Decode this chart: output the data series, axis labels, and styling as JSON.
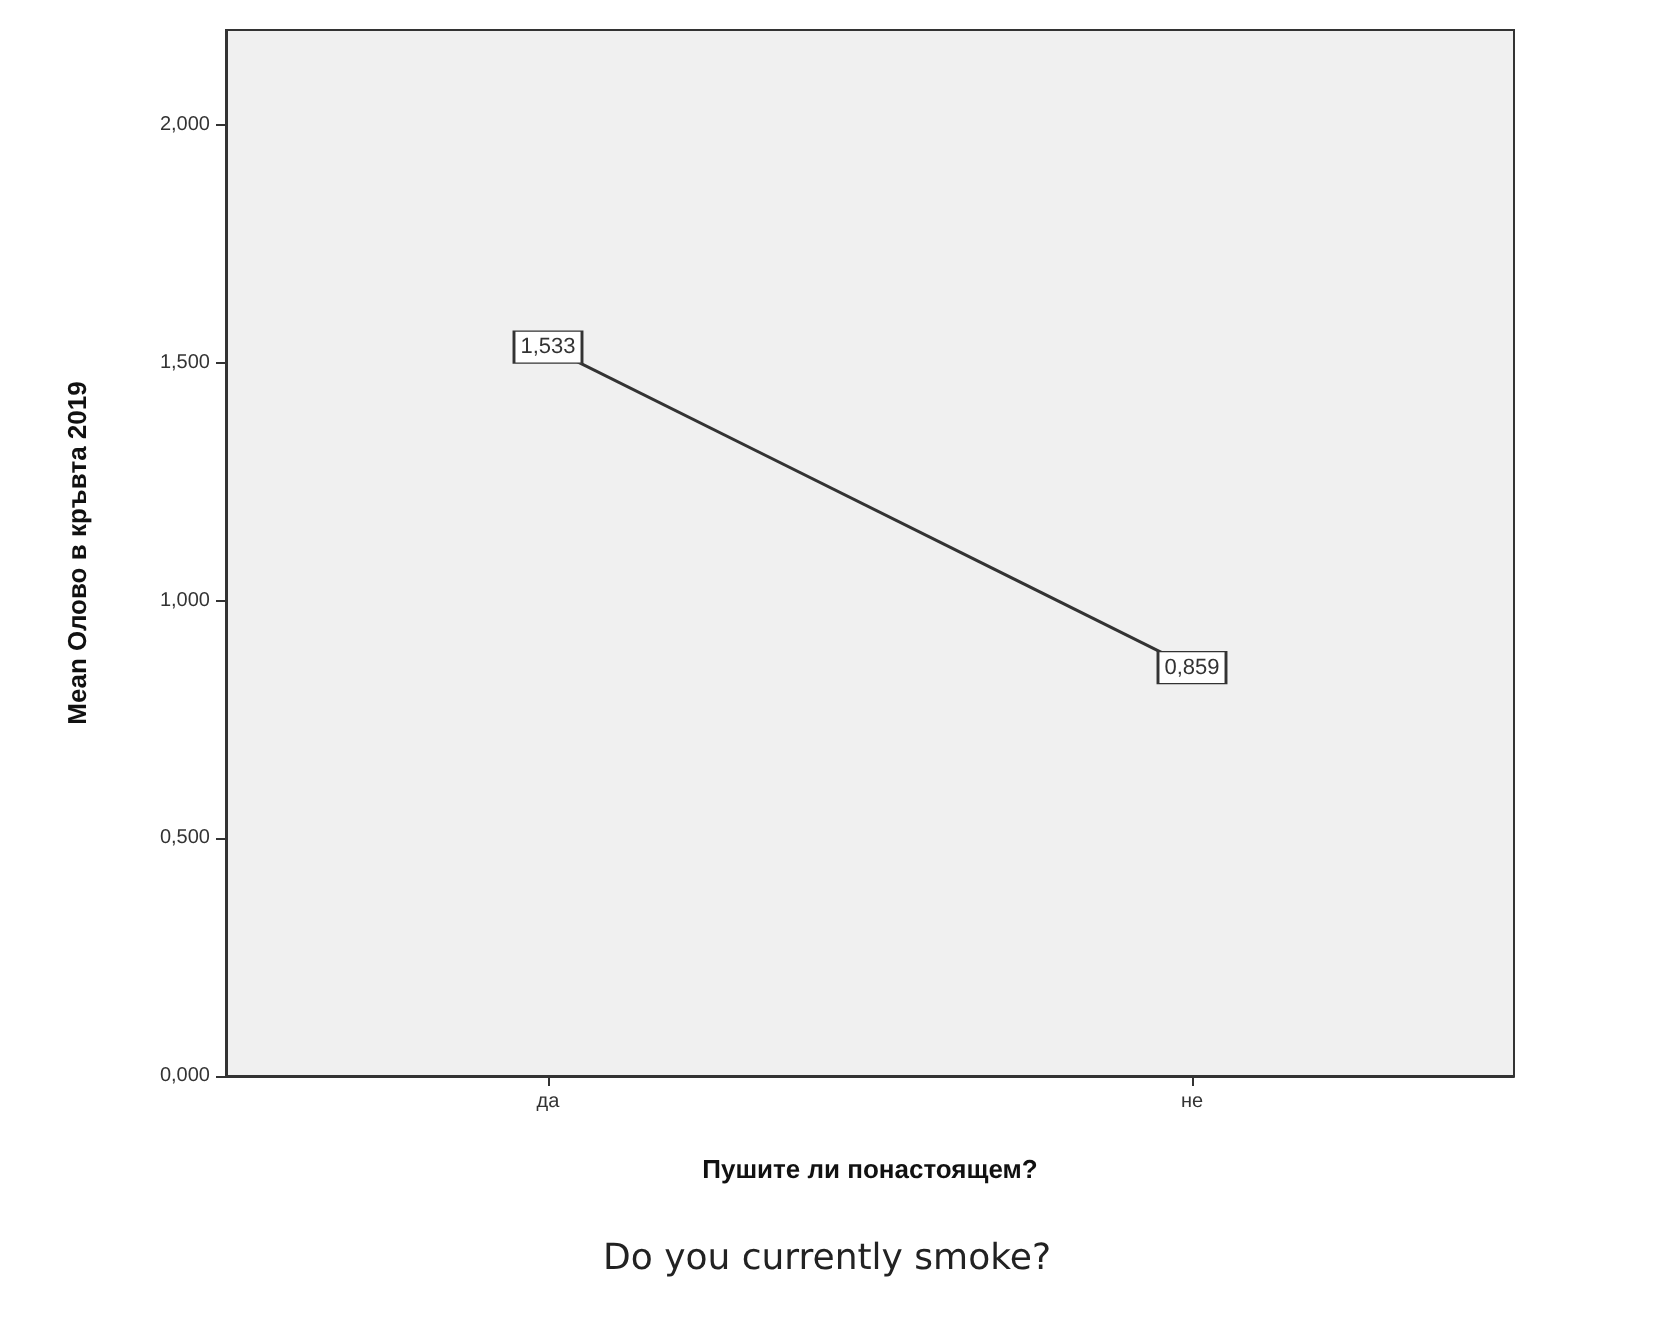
{
  "chart_data": {
    "type": "line",
    "xlabel": "Пушите ли понастоящем?",
    "ylabel": "Mean Олово в кръвта 2019",
    "categories": [
      "да",
      "не"
    ],
    "series": [
      {
        "color": "#333333",
        "values": [
          1.533,
          0.859
        ],
        "value_labels": [
          "1,533",
          "0,859"
        ]
      }
    ],
    "ylim": [
      0,
      2.2
    ],
    "yticks": [
      {
        "value": 0,
        "label": "0,000"
      },
      {
        "value": 0.5,
        "label": "0,500"
      },
      {
        "value": 1,
        "label": "1,000"
      },
      {
        "value": 1.5,
        "label": "1,500"
      },
      {
        "value": 2,
        "label": "2,000"
      }
    ],
    "grid": false,
    "marker": "square",
    "line_style": "solid",
    "annotations": [
      "Do you currently smoke?"
    ]
  }
}
